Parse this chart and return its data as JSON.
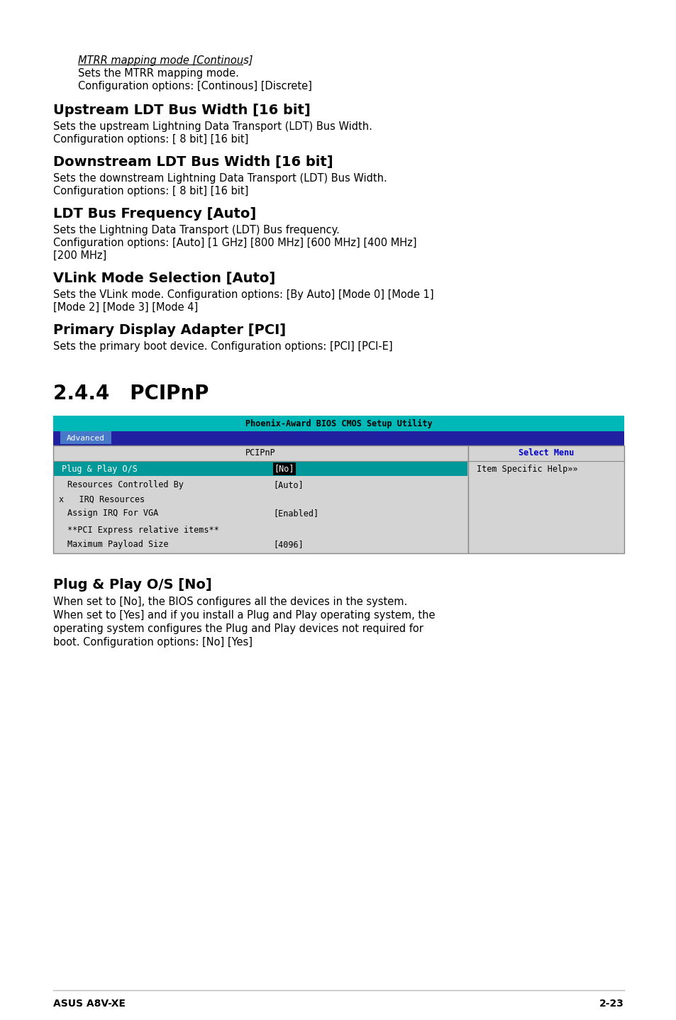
{
  "page_bg": "#ffffff",
  "footer_left": "ASUS A8V-XE",
  "footer_right": "2-23",
  "mtrr_heading": "MTRR mapping mode [Continous]",
  "mtrr_line1": "Sets the MTRR mapping mode.",
  "mtrr_line2": "Configuration options: [Continous] [Discrete]",
  "section1_title": "Upstream LDT Bus Width [16 bit]",
  "section1_line1": "Sets the upstream Lightning Data Transport (LDT) Bus Width.",
  "section1_line2": "Configuration options: [ 8 bit] [16 bit]",
  "section2_title": "Downstream LDT Bus Width [16 bit]",
  "section2_line1": "Sets the downstream Lightning Data Transport (LDT) Bus Width.",
  "section2_line2": "Configuration options: [ 8 bit] [16 bit]",
  "section3_title": "LDT Bus Frequency [Auto]",
  "section3_line1": "Sets the Lightning Data Transport (LDT) Bus frequency.",
  "section3_line2": "Configuration options: [Auto] [1 GHz] [800 MHz] [600 MHz] [400 MHz]",
  "section3_line3": "[200 MHz]",
  "section4_title": "VLink Mode Selection [Auto]",
  "section4_line1": "Sets the VLink mode. Configuration options: [By Auto] [Mode 0] [Mode 1]",
  "section4_line2": "[Mode 2] [Mode 3] [Mode 4]",
  "section5_title": "Primary Display Adapter [PCI]",
  "section5_line1": "Sets the primary boot device. Configuration options: [PCI] [PCI-E]",
  "section_244": "2.4.4   PCIPnP",
  "bios_title": "Phoenix-Award BIOS CMOS Setup Utility",
  "bios_title_bg": "#00b8b8",
  "tab_advanced": "Advanced",
  "tab_bg": "#2020a0",
  "tab_active_bg": "#4878c8",
  "col1_header": "PCIPnP",
  "col2_header": "Select Menu",
  "col2_color": "#0000cc",
  "help_text": "Item Specific Help»»",
  "row1_label": "Plug & Play O/S",
  "row1_label_bg": "#009898",
  "row1_value": "[No]",
  "row2_label": "Resources Controlled By",
  "row2_value": "[Auto]",
  "row3_label": "x   IRQ Resources",
  "row4_label": "Assign IRQ For VGA",
  "row4_value": "[Enabled]",
  "row5_label": "**PCI Express relative items**",
  "row6_label": "Maximum Payload Size",
  "row6_value": "[4096]",
  "plug_title": "Plug & Play O/S [No]",
  "plug_line1": "When set to [No], the BIOS configures all the devices in the system.",
  "plug_line2": "When set to [Yes] and if you install a Plug and Play operating system, the",
  "plug_line3": "operating system configures the Plug and Play devices not required for",
  "plug_line4": "boot. Configuration options: [No] [Yes]"
}
